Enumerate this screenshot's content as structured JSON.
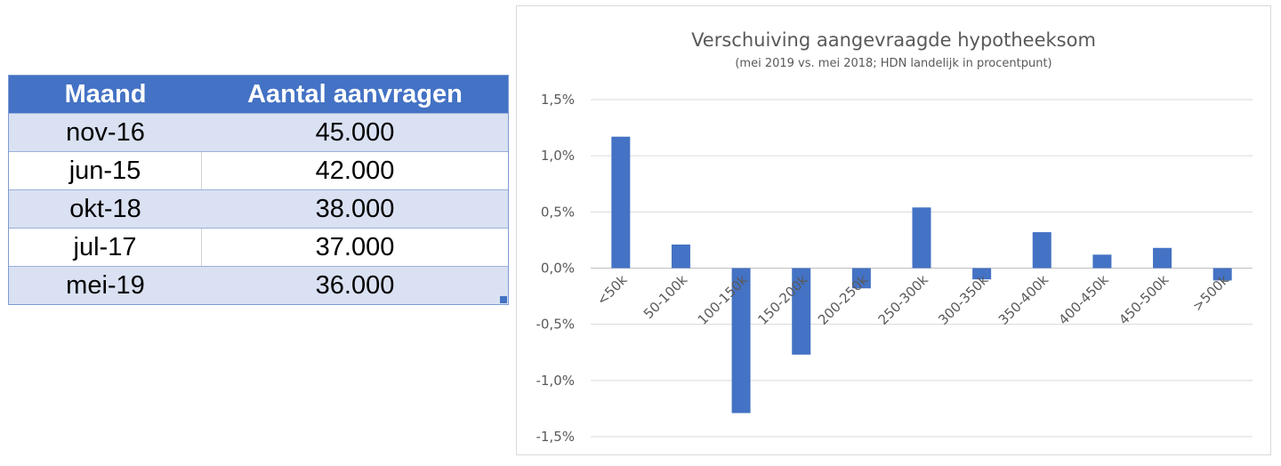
{
  "table": {
    "headers": [
      "Maand",
      "Aantal aanvragen"
    ],
    "rows": [
      [
        "nov-16",
        "45.000"
      ],
      [
        "jun-15",
        "42.000"
      ],
      [
        "okt-18",
        "38.000"
      ],
      [
        "jul-17",
        "37.000"
      ],
      [
        "mei-19",
        "36.000"
      ]
    ]
  },
  "colors": {
    "header_bg": "#4472c4",
    "band": "#d9e1f2",
    "bar": "#4472c4"
  },
  "chart_data": {
    "type": "bar",
    "title": "Verschuiving aangevraagde hypotheeksom",
    "subtitle": "(mei 2019 vs. mei 2018; HDN landelijk in procentpunt)",
    "categories": [
      "<50k",
      "50-100k",
      "100-150k",
      "150-200k",
      "200-250k",
      "250-300k",
      "300-350k",
      "350-400k",
      "400-450k",
      "450-500k",
      ">500k"
    ],
    "values": [
      1.17,
      0.21,
      -1.29,
      -0.77,
      -0.18,
      0.54,
      -0.1,
      0.32,
      0.12,
      0.18,
      -0.11
    ],
    "ylim": [
      -1.5,
      1.5
    ],
    "yticks": [
      1.5,
      1.0,
      0.5,
      0.0,
      -0.5,
      -1.0,
      -1.5
    ],
    "ytick_labels": [
      "1,5%",
      "1,0%",
      "0,5%",
      "0,0%",
      "-0,5%",
      "-1,0%",
      "-1,5%"
    ],
    "grid": true,
    "legend": "none"
  }
}
